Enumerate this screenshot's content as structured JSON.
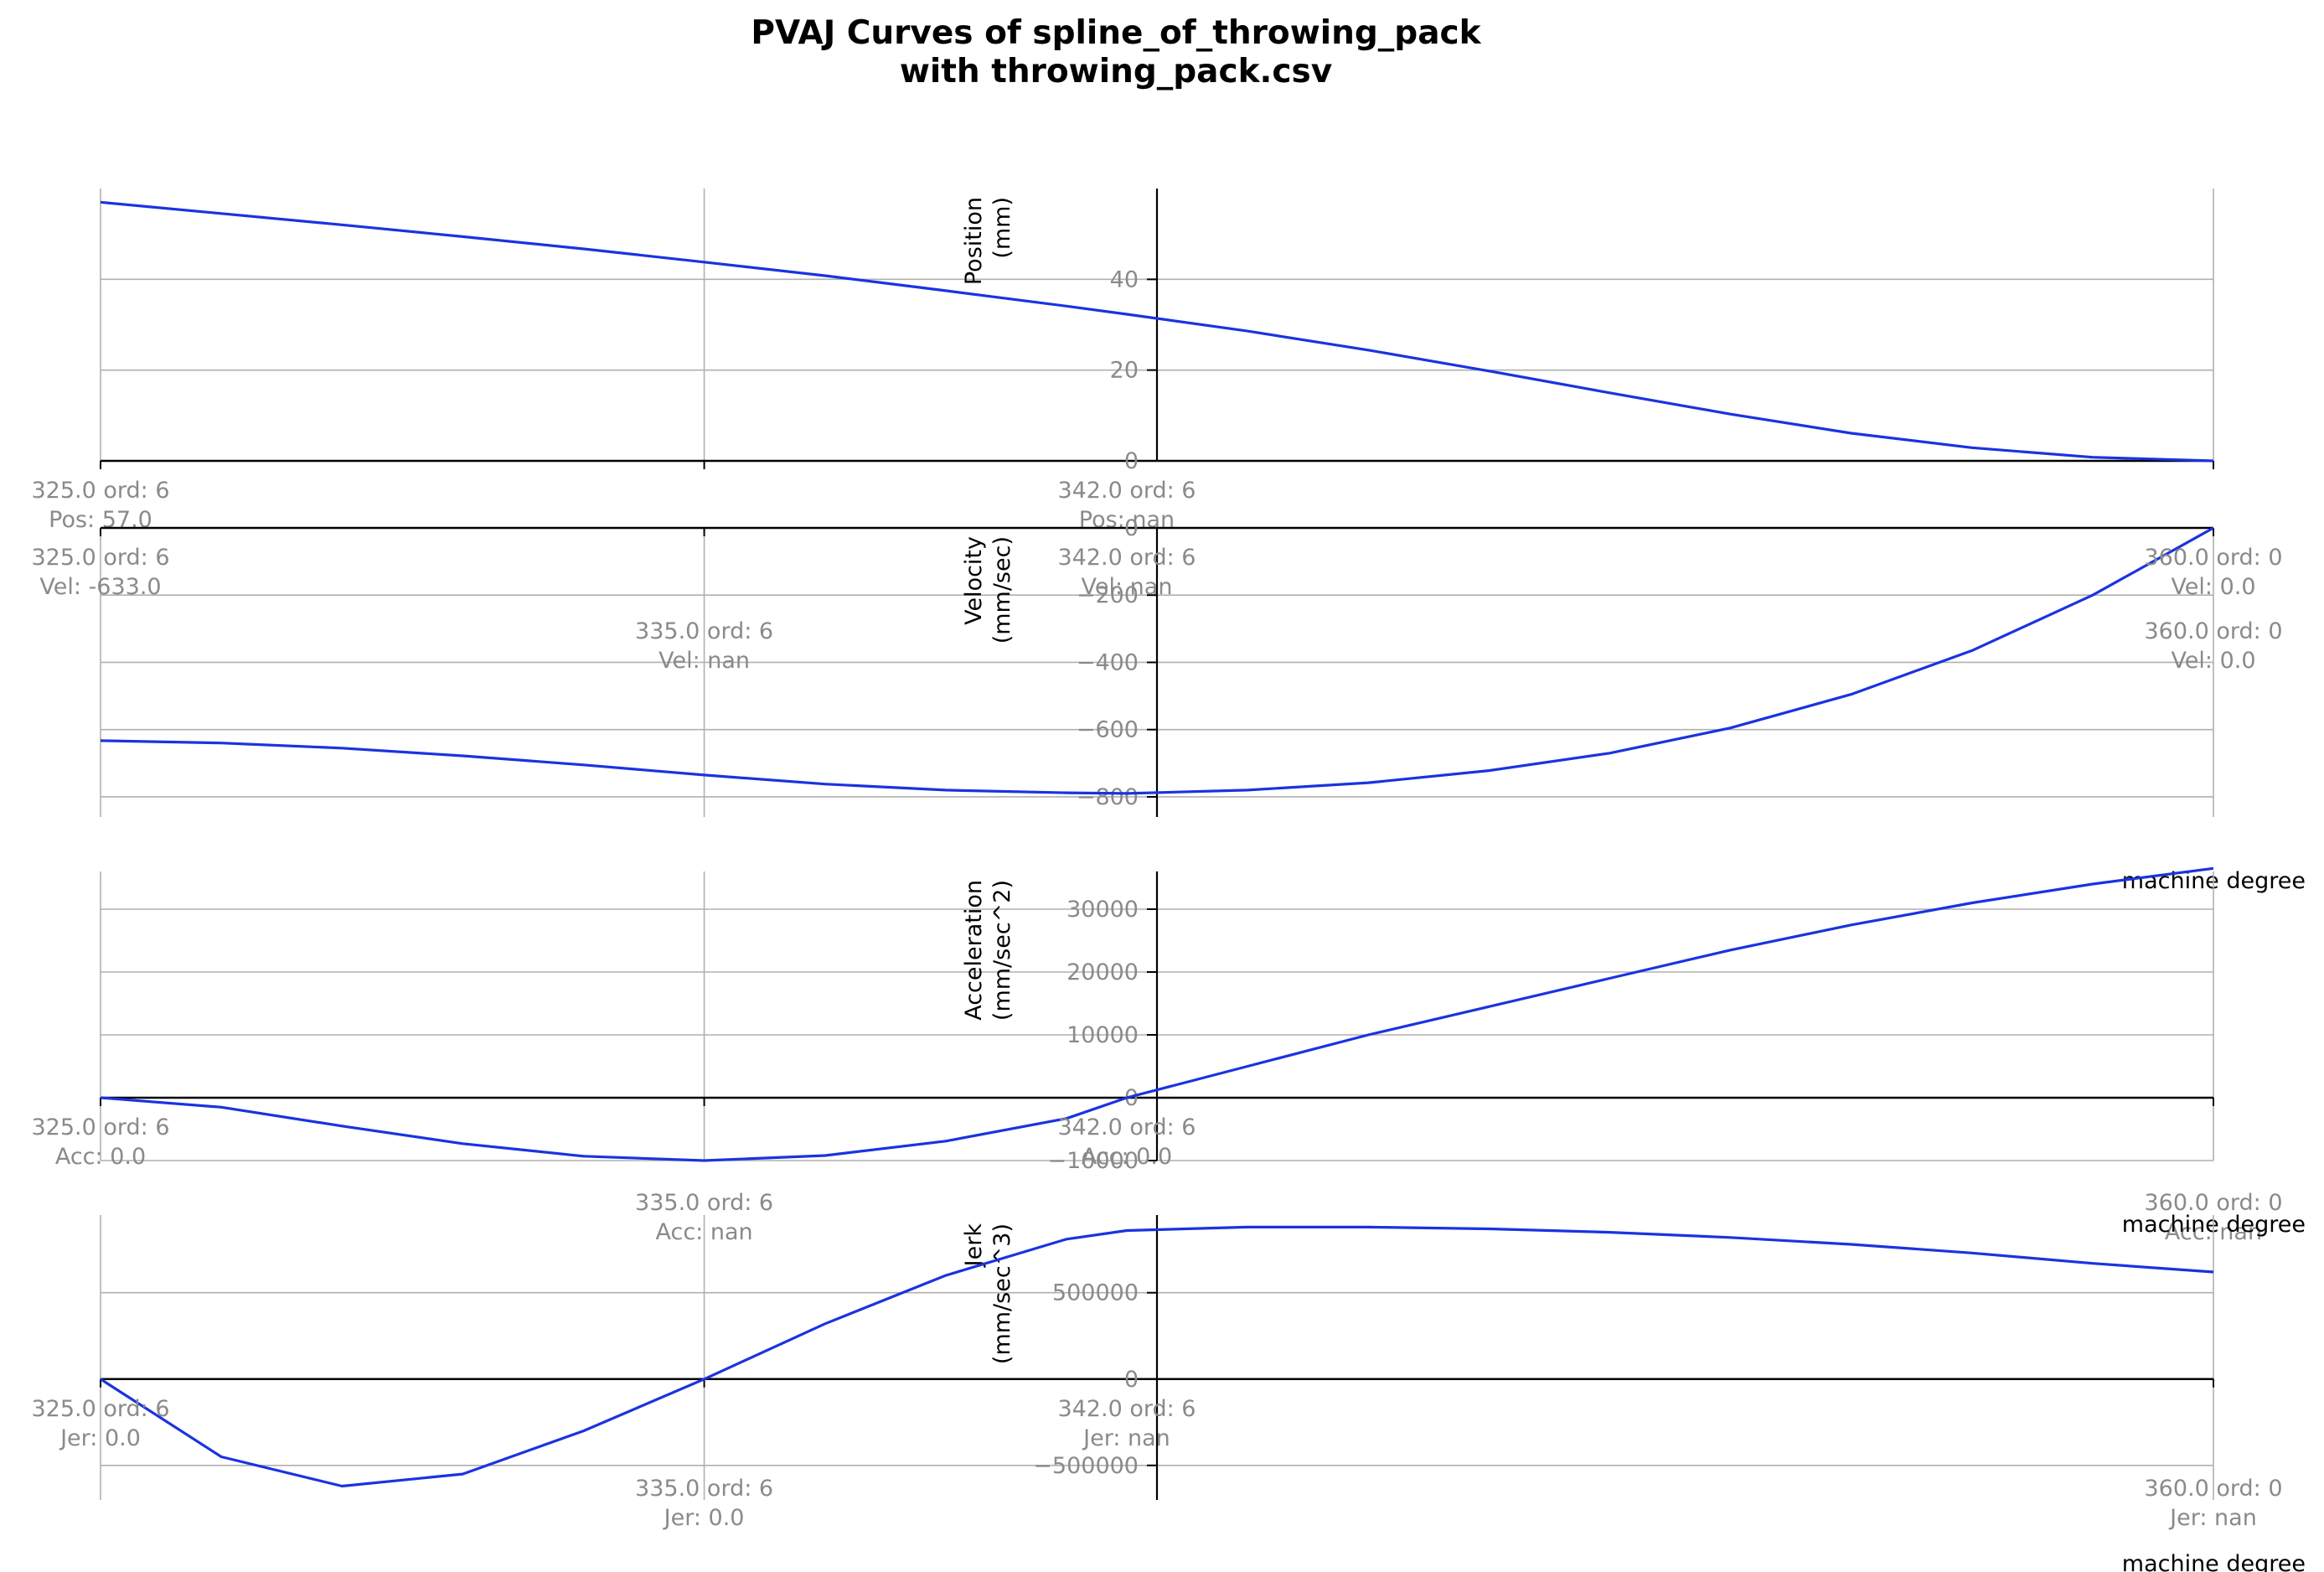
{
  "title_line1": "PVAJ Curves of spline_of_throwing_pack",
  "title_line2": "with throwing_pack.csv",
  "colors": {
    "curve": "#1a33e0",
    "grid": "#b0b0b0",
    "tick_text": "#8a8a8a",
    "axis": "#000000"
  },
  "chart_data": [
    {
      "type": "line",
      "ylabel_line1": "Position",
      "ylabel_line2": "(mm)",
      "xlabel": "",
      "xlim": [
        325,
        360
      ],
      "ylim": [
        0,
        60
      ],
      "yticks": [
        0,
        20,
        40
      ],
      "ytick_labels": [
        "0",
        "20",
        "40"
      ],
      "x": [
        325,
        327,
        329,
        331,
        333,
        335,
        337,
        339,
        341,
        342,
        344,
        346,
        348,
        350,
        352,
        354,
        356,
        358,
        360
      ],
      "y": [
        57.0,
        54.5,
        52.0,
        49.4,
        46.7,
        43.8,
        40.8,
        37.5,
        34.1,
        32.3,
        28.6,
        24.4,
        19.8,
        15.0,
        10.3,
        6.1,
        2.9,
        0.8,
        0.0
      ],
      "grid": true,
      "annotations": [
        {
          "x": 325,
          "lines": [
            "325.0 ord: 6",
            "Pos: 57.0"
          ]
        },
        {
          "x": 342,
          "lines": [
            "342.0 ord: 6",
            "Pos: nan"
          ]
        }
      ]
    },
    {
      "type": "line",
      "ylabel_line1": "Velocity",
      "ylabel_line2": "(mm/sec)",
      "xlabel": "machine degree",
      "xlim": [
        325,
        360
      ],
      "ylim": [
        -860,
        0
      ],
      "yticks": [
        -800,
        -600,
        -400,
        -200,
        0
      ],
      "ytick_labels": [
        "−800",
        "−600",
        "−400",
        "−200",
        "0"
      ],
      "x": [
        325,
        327,
        329,
        331,
        333,
        335,
        337,
        339,
        341,
        342,
        344,
        346,
        348,
        350,
        352,
        354,
        356,
        358,
        360
      ],
      "y": [
        -633,
        -640,
        -655,
        -678,
        -705,
        -735,
        -762,
        -780,
        -788,
        -790,
        -780,
        -758,
        -722,
        -670,
        -595,
        -495,
        -365,
        -200,
        0
      ],
      "grid": true,
      "annotations": [
        {
          "x": 325,
          "lines": [
            "325.0 ord: 6",
            "Vel: -633.0"
          ]
        },
        {
          "x": 342,
          "lines": [
            "342.0 ord: 6",
            "Vel: nan"
          ]
        },
        {
          "x": 335,
          "lines": [
            "335.0 ord: 6",
            "Vel: nan"
          ]
        },
        {
          "x": 360,
          "lines": [
            "360.0 ord: 0",
            "Vel: 0.0"
          ]
        },
        {
          "x": 360,
          "lines": [
            "360.0 ord: 0",
            "Vel: 0.0"
          ]
        }
      ]
    },
    {
      "type": "line",
      "ylabel_line1": "Acceleration",
      "ylabel_line2": "(mm/sec^2)",
      "xlabel": "machine degree",
      "xlim": [
        325,
        360
      ],
      "ylim": [
        -10000,
        36000
      ],
      "yticks": [
        -10000,
        0,
        10000,
        20000,
        30000
      ],
      "ytick_labels": [
        "−10000",
        "0",
        "10000",
        "20000",
        "30000"
      ],
      "x": [
        325,
        327,
        329,
        331,
        333,
        335,
        337,
        339,
        341,
        342,
        344,
        346,
        348,
        350,
        352,
        354,
        356,
        358,
        360
      ],
      "y": [
        0,
        -1500,
        -4500,
        -7300,
        -9300,
        -10000,
        -9200,
        -6900,
        -3300,
        0,
        5000,
        10000,
        14500,
        19000,
        23500,
        27500,
        31000,
        34000,
        36500
      ],
      "grid": true,
      "annotations": [
        {
          "x": 325,
          "lines": [
            "325.0 ord: 6",
            "Acc: 0.0"
          ]
        },
        {
          "x": 342,
          "lines": [
            "342.0 ord: 6",
            "Acc: 0.0"
          ]
        },
        {
          "x": 335,
          "lines": [
            "335.0 ord: 6",
            "Acc: nan"
          ]
        },
        {
          "x": 360,
          "lines": [
            "360.0 ord: 0",
            "Acc: nan"
          ]
        }
      ]
    },
    {
      "type": "line",
      "ylabel_line1": "Jerk",
      "ylabel_line2": "(mm/sec^3)",
      "xlabel": "machine degree",
      "xlim": [
        325,
        360
      ],
      "ylim": [
        -700000,
        950000
      ],
      "yticks": [
        -500000,
        0,
        500000
      ],
      "ytick_labels": [
        "−500000",
        "0",
        "500000"
      ],
      "x": [
        325,
        327,
        329,
        331,
        333,
        335,
        337,
        339,
        341,
        342,
        344,
        346,
        348,
        350,
        352,
        354,
        356,
        358,
        360
      ],
      "y": [
        0,
        -450000,
        -620000,
        -550000,
        -300000,
        0,
        320000,
        600000,
        810000,
        860000,
        880000,
        880000,
        870000,
        850000,
        820000,
        780000,
        730000,
        670000,
        620000
      ],
      "grid": true,
      "annotations": [
        {
          "x": 325,
          "lines": [
            "325.0 ord: 6",
            "Jer: 0.0"
          ]
        },
        {
          "x": 342,
          "lines": [
            "342.0 ord: 6",
            "Jer: nan"
          ]
        },
        {
          "x": 335,
          "lines": [
            "335.0 ord: 6",
            "Jer: 0.0"
          ]
        },
        {
          "x": 360,
          "lines": [
            "360.0 ord: 0",
            "Jer: nan"
          ]
        }
      ]
    }
  ]
}
